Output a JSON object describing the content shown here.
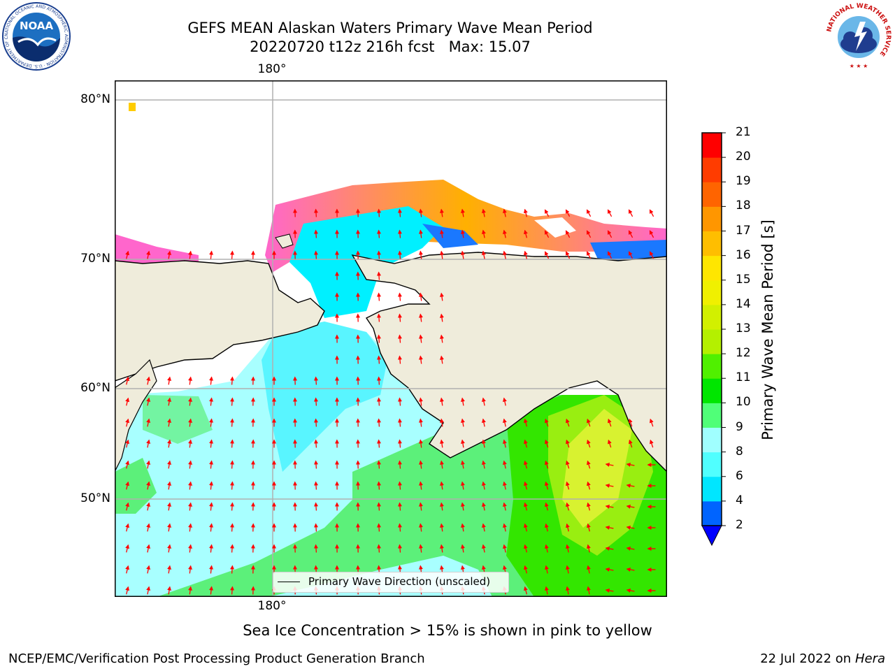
{
  "title": {
    "line1": "GEFS MEAN Alaskan Waters Primary Wave Mean Period",
    "line2": "20220720 t12z 216h fcst   Max: 15.07"
  },
  "map": {
    "lat_labels": [
      "80°N",
      "70°N",
      "60°N",
      "50°N"
    ],
    "lon_label_top": "180°",
    "lon_label_bottom": "180°",
    "legend_text": "Primary Wave Direction (unscaled)",
    "land_color": "#efecdb",
    "coast_color": "#000000",
    "grid_color": "#b0b0b0",
    "arrow_color": "#ff0000"
  },
  "colorbar": {
    "label": "Primary Wave Mean Period [s]",
    "ticks": [
      "2",
      "4",
      "6",
      "8",
      "9",
      "10",
      "11",
      "12",
      "13",
      "14",
      "15",
      "16",
      "17",
      "18",
      "19",
      "20",
      "21"
    ],
    "colors": [
      "#0064ff",
      "#00e6ff",
      "#50ffff",
      "#a0ffff",
      "#50ff78",
      "#00e600",
      "#50f000",
      "#b4f000",
      "#d2f000",
      "#f0f000",
      "#ffe600",
      "#ffbe00",
      "#ff9600",
      "#ff6400",
      "#ff3c00",
      "#ff0000"
    ],
    "extend_color": "#0000ff"
  },
  "note": "Sea Ice Concentration > 15% is shown in pink to yellow",
  "footer": {
    "left": "NCEP/EMC/Verification Post Processing Product Generation Branch",
    "right_prefix": "22 Jul 2022 on ",
    "right_host": "Hera"
  },
  "logos": {
    "noaa_text": "NOAA",
    "noaa_ring_text": "NATIONAL OCEANIC AND ATMOSPHERIC ADMINISTRATION · U.S. DEPARTMENT OF COMMERCE",
    "nws_ring_text": "NATIONAL WEATHER SERVICE"
  }
}
